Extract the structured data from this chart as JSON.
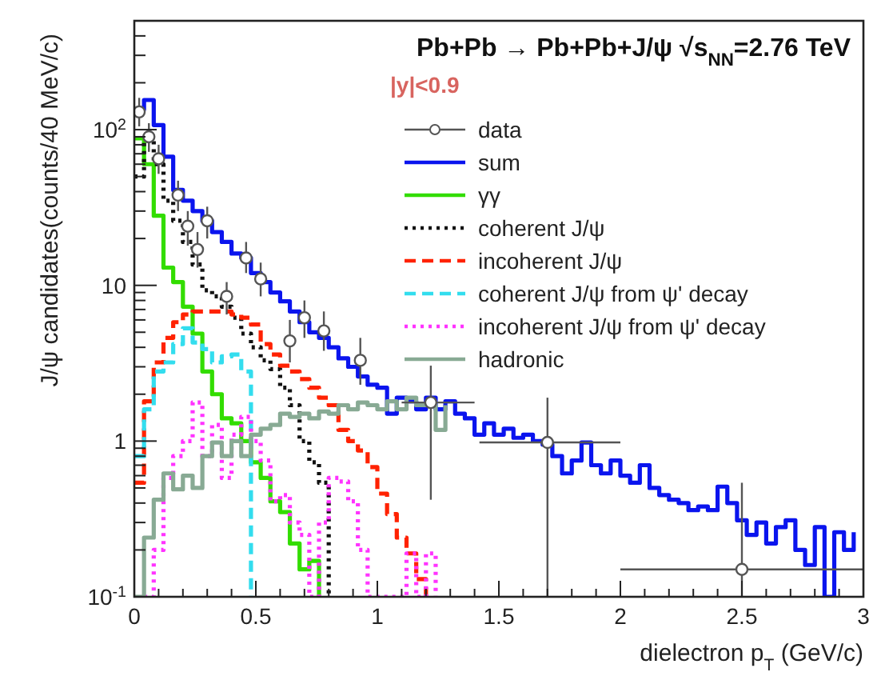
{
  "chart_data": {
    "type": "step",
    "title": "Pb+Pb → Pb+Pb+J/ψ √s$_{NN}$=2.76 TeV",
    "subtitle": "|y|<0.9",
    "xlabel": "dielectron p$_{T}$ (GeV/c)",
    "ylabel": "J/ψ candidates(counts/40 MeV/c)",
    "log": "y",
    "legend": "top right",
    "xlim": [
      0,
      3
    ],
    "xticks": [
      0,
      {
        "value": 0.1,
        "label": null
      },
      {
        "value": 0.2,
        "label": null
      },
      {
        "value": 0.3,
        "label": null
      },
      {
        "value": 0.4,
        "label": null
      },
      0.5,
      {
        "value": 0.6,
        "label": null
      },
      {
        "value": 0.7,
        "label": null
      },
      {
        "value": 0.8,
        "label": null
      },
      {
        "value": 0.9,
        "label": null
      },
      1,
      {
        "value": 1.1,
        "label": null
      },
      {
        "value": 1.2,
        "label": null
      },
      {
        "value": 1.3,
        "label": null
      },
      {
        "value": 1.4,
        "label": null
      },
      1.5,
      {
        "value": 1.6,
        "label": null
      },
      {
        "value": 1.7,
        "label": null
      },
      {
        "value": 1.8,
        "label": null
      },
      {
        "value": 1.9,
        "label": null
      },
      2,
      {
        "value": 2.1,
        "label": null
      },
      {
        "value": 2.2,
        "label": null
      },
      {
        "value": 2.3,
        "label": null
      },
      {
        "value": 2.4,
        "label": null
      },
      2.5,
      {
        "value": 2.6,
        "label": null
      },
      {
        "value": 2.7,
        "label": null
      },
      {
        "value": 2.8,
        "label": null
      },
      {
        "value": 2.9,
        "label": null
      },
      3
    ],
    "ylim": [
      0.1,
      500
    ],
    "yticks": [
      {
        "value": 0.1,
        "label": "10$^{-1}$"
      },
      {
        "value": 0.2,
        "label": null
      },
      {
        "value": 0.3,
        "label": null
      },
      {
        "value": 0.4,
        "label": null
      },
      {
        "value": 0.5,
        "label": null
      },
      {
        "value": 0.6,
        "label": null
      },
      {
        "value": 0.7,
        "label": null
      },
      {
        "value": 0.8,
        "label": null
      },
      {
        "value": 0.9,
        "label": null
      },
      1,
      {
        "value": 2,
        "label": null
      },
      {
        "value": 3,
        "label": null
      },
      {
        "value": 4,
        "label": null
      },
      {
        "value": 5,
        "label": null
      },
      {
        "value": 6,
        "label": null
      },
      {
        "value": 7,
        "label": null
      },
      {
        "value": 8,
        "label": null
      },
      {
        "value": 9,
        "label": null
      },
      10,
      {
        "value": 20,
        "label": null
      },
      {
        "value": 30,
        "label": null
      },
      {
        "value": 40,
        "label": null
      },
      {
        "value": 50,
        "label": null
      },
      {
        "value": 60,
        "label": null
      },
      {
        "value": 70,
        "label": null
      },
      {
        "value": 80,
        "label": null
      },
      {
        "value": 90,
        "label": null
      },
      {
        "value": 100,
        "label": "10$^{2}$"
      },
      {
        "value": 200,
        "label": null
      },
      {
        "value": 300,
        "label": null
      },
      {
        "value": 400,
        "label": null
      }
    ],
    "series": [
      {
        "name": "data",
        "type": "scatter",
        "marker": "circle",
        "color": "#555555",
        "x": [
          0.02,
          0.06,
          0.1,
          0.18,
          0.22,
          0.26,
          0.3,
          0.38,
          0.46,
          0.52,
          0.64,
          0.7,
          0.78,
          0.93,
          1.22,
          1.7,
          2.5
        ],
        "values": [
          130,
          90,
          65,
          38,
          24,
          17,
          26,
          8.5,
          15,
          11,
          4.4,
          6.2,
          5.1,
          3.3,
          1.77,
          0.98,
          0.15
        ],
        "errors": [
          [
            105,
            160
          ],
          [
            72,
            110
          ],
          [
            52,
            80
          ],
          [
            30,
            47
          ],
          [
            18,
            30
          ],
          [
            13,
            22
          ],
          [
            20,
            32
          ],
          [
            6.5,
            10.5
          ],
          [
            12,
            19
          ],
          [
            8.5,
            14
          ],
          [
            3.2,
            6
          ],
          [
            4.6,
            8
          ],
          [
            3.8,
            6.8
          ],
          [
            2.3,
            4.6
          ],
          [
            0.42,
            3.05
          ],
          [
            0.1,
            1.9
          ],
          [
            0.1,
            0.54
          ]
        ],
        "xerrors": [
          0.02,
          0.02,
          0.02,
          0.02,
          0.02,
          0.02,
          0.02,
          0.02,
          0.02,
          0.02,
          0.02,
          0.02,
          0.02,
          0.02,
          [
            1.1,
            1.4
          ],
          [
            1.42,
            2.0
          ],
          [
            2.0,
            3.0
          ]
        ]
      },
      {
        "name": "sum",
        "color": "#0a14ee",
        "line_style": "solid",
        "x": [
          0,
          0.04,
          0.08,
          0.12,
          0.16,
          0.2,
          0.24,
          0.28,
          0.32,
          0.36,
          0.4,
          0.44,
          0.48,
          0.52,
          0.56,
          0.6,
          0.64,
          0.68,
          0.72,
          0.76,
          0.8,
          0.84,
          0.88,
          0.92,
          0.96,
          1.0,
          1.04,
          1.08,
          1.12,
          1.16,
          1.2,
          1.24,
          1.28,
          1.32,
          1.36,
          1.4,
          1.44,
          1.48,
          1.52,
          1.56,
          1.6,
          1.64,
          1.68,
          1.72,
          1.76,
          1.8,
          1.84,
          1.88,
          1.92,
          1.96,
          2.0,
          2.04,
          2.08,
          2.12,
          2.16,
          2.2,
          2.24,
          2.28,
          2.32,
          2.36,
          2.4,
          2.44,
          2.48,
          2.52,
          2.56,
          2.6,
          2.64,
          2.68,
          2.72,
          2.76,
          2.8,
          2.84,
          2.88,
          2.92,
          2.96
        ],
        "values": [
          135,
          155,
          107,
          67,
          41,
          35,
          30,
          26,
          22,
          19,
          16,
          15,
          12,
          10.5,
          9,
          7.9,
          6.8,
          5.8,
          5.0,
          4.6,
          4.0,
          3.4,
          3.0,
          2.6,
          2.3,
          2.2,
          1.5,
          1.9,
          1.8,
          1.6,
          1.9,
          1.6,
          1.8,
          1.5,
          1.4,
          1.1,
          1.3,
          1.1,
          1.2,
          1.05,
          1.1,
          1.0,
          0.95,
          0.8,
          0.62,
          0.75,
          0.98,
          0.7,
          0.62,
          0.75,
          0.6,
          0.54,
          0.7,
          0.5,
          0.45,
          0.42,
          0.4,
          0.36,
          0.38,
          0.36,
          0.51,
          0.4,
          0.31,
          0.25,
          0.3,
          0.22,
          0.28,
          0.31,
          0.2,
          0.16,
          0.28,
          0.1,
          0.26,
          0.2,
          0.26
        ]
      },
      {
        "name": "γγ",
        "color": "#33dd00",
        "line_style": "solid",
        "x": [
          0,
          0.04,
          0.08,
          0.12,
          0.16,
          0.2,
          0.24,
          0.28,
          0.32,
          0.36,
          0.4,
          0.44,
          0.48,
          0.52,
          0.56,
          0.6,
          0.64,
          0.68,
          0.72,
          0.76
        ],
        "values": [
          88,
          60,
          28,
          13,
          10.5,
          7.3,
          4.9,
          2.8,
          2.0,
          1.4,
          1.3,
          1.0,
          0.73,
          0.58,
          0.41,
          0.35,
          0.22,
          0.15,
          0.17,
          0.1
        ]
      },
      {
        "name": "coherent J/ψ",
        "color": "#111111",
        "line_style": "dotted",
        "x": [
          0,
          0.04,
          0.08,
          0.12,
          0.16,
          0.2,
          0.24,
          0.28,
          0.32,
          0.36,
          0.4,
          0.44,
          0.48,
          0.52,
          0.56,
          0.6,
          0.64,
          0.68,
          0.72,
          0.76,
          0.8
        ],
        "values": [
          50,
          85,
          60,
          35,
          26,
          19,
          13.6,
          9.3,
          8.5,
          7.3,
          6.2,
          4.9,
          4.0,
          3.3,
          2.9,
          2.2,
          1.7,
          1.0,
          0.73,
          0.54,
          0.1
        ]
      },
      {
        "name": "incoherent J/ψ",
        "color": "#ff2200",
        "line_style": "dashed",
        "x": [
          0,
          0.04,
          0.08,
          0.12,
          0.16,
          0.2,
          0.24,
          0.28,
          0.32,
          0.36,
          0.4,
          0.44,
          0.48,
          0.52,
          0.56,
          0.6,
          0.64,
          0.68,
          0.72,
          0.76,
          0.8,
          0.84,
          0.88,
          0.92,
          0.96,
          1.0,
          1.04,
          1.08,
          1.12,
          1.16,
          1.2
        ],
        "values": [
          0.54,
          1.8,
          3.2,
          4.6,
          5.8,
          6.5,
          6.8,
          6.8,
          6.8,
          6.8,
          6.5,
          6.2,
          5.6,
          4.2,
          3.6,
          3.05,
          2.8,
          2.5,
          2.2,
          1.9,
          1.7,
          1.18,
          1.0,
          0.87,
          0.68,
          0.46,
          0.34,
          0.24,
          0.19,
          0.13,
          0.1
        ]
      },
      {
        "name": "coherent J/ψ from ψ' decay",
        "color": "#33ddee",
        "line_style": "dashed",
        "x": [
          0,
          0.04,
          0.08,
          0.12,
          0.16,
          0.2,
          0.24,
          0.28,
          0.32,
          0.36,
          0.4,
          0.44,
          0.48
        ],
        "values": [
          0.8,
          1.6,
          2.8,
          3.2,
          4.2,
          5.3,
          4.3,
          3.9,
          3.2,
          3.5,
          3.6,
          2.8,
          0.1
        ]
      },
      {
        "name": "incoherent J/ψ from ψ' decay",
        "color": "#ff33ff",
        "line_style": "dotted",
        "x": [
          0.04,
          0.08,
          0.12,
          0.16,
          0.2,
          0.24,
          0.28,
          0.32,
          0.36,
          0.4,
          0.44,
          0.48,
          0.52,
          0.56,
          0.6,
          0.64,
          0.68,
          0.72,
          0.76,
          0.8,
          0.84,
          0.88,
          0.92,
          0.96,
          1.0,
          1.04,
          1.08,
          1.12,
          1.16,
          1.2,
          1.24
        ],
        "values": [
          0.1,
          0.2,
          0.58,
          0.8,
          1.0,
          1.77,
          0.8,
          1.27,
          0.58,
          1.1,
          1.43,
          1.0,
          0.75,
          0.41,
          0.45,
          0.3,
          0.25,
          0.1,
          0.3,
          0.58,
          0.55,
          0.41,
          0.2,
          0.1,
          0.1,
          0.1,
          0.1,
          0.19,
          0.1,
          0.19,
          0.1
        ]
      },
      {
        "name": "hadronic",
        "color": "#88aa94",
        "line_style": "solid",
        "x": [
          0,
          0.04,
          0.08,
          0.12,
          0.16,
          0.2,
          0.24,
          0.28,
          0.32,
          0.36,
          0.4,
          0.44,
          0.48,
          0.52,
          0.56,
          0.6,
          0.64,
          0.68,
          0.72,
          0.76,
          0.8,
          0.84,
          0.88,
          0.92,
          0.96,
          1.0,
          1.04,
          1.08,
          1.12,
          1.16,
          1.2,
          1.24,
          1.28
        ],
        "values": [
          0.1,
          0.24,
          0.42,
          0.62,
          0.49,
          0.6,
          0.5,
          0.8,
          0.98,
          0.8,
          1.0,
          0.8,
          1.1,
          1.2,
          1.27,
          1.5,
          1.43,
          1.5,
          1.4,
          1.55,
          1.5,
          1.7,
          1.6,
          1.77,
          1.7,
          1.6,
          1.8,
          1.6,
          1.9,
          1.7,
          1.7,
          1.18,
          1.7
        ]
      }
    ]
  }
}
